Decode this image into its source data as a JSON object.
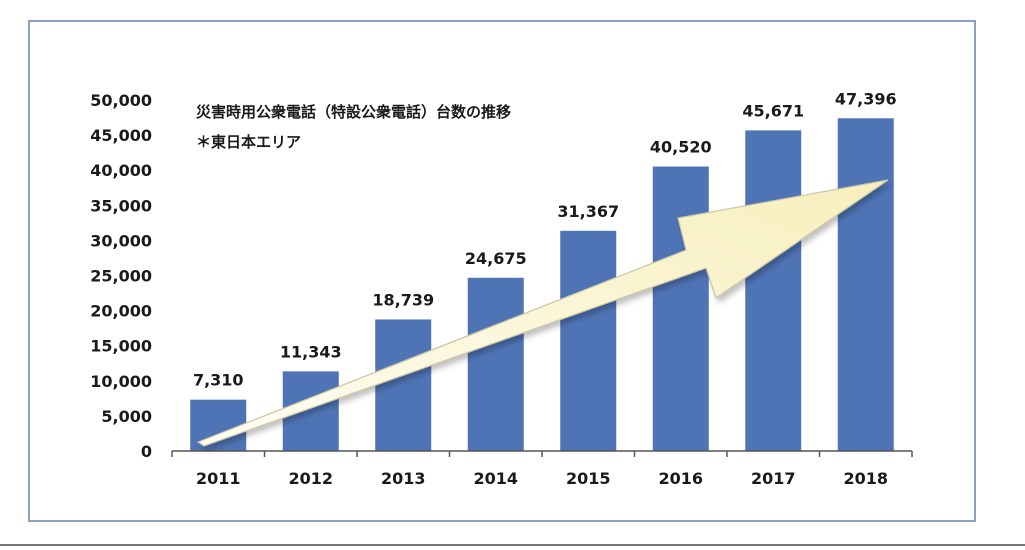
{
  "chart_data": {
    "type": "bar",
    "title": "災害時用公衆電話（特設公衆電話）台数の推移",
    "subtitle": "＊東日本エリア",
    "categories": [
      "2011",
      "2012",
      "2013",
      "2014",
      "2015",
      "2016",
      "2017",
      "2018"
    ],
    "values": [
      7310,
      11343,
      18739,
      24675,
      31367,
      40520,
      45671,
      47396
    ],
    "data_labels": [
      "7,310",
      "11,343",
      "18,739",
      "24,675",
      "31,367",
      "40,520",
      "45,671",
      "47,396"
    ],
    "y_ticks": [
      "0",
      "5,000",
      "10,000",
      "15,000",
      "20,000",
      "25,000",
      "30,000",
      "35,000",
      "40,000",
      "45,000",
      "50,000"
    ],
    "ylim": [
      0,
      50000
    ],
    "y_step": 5000,
    "grid": false,
    "bar_color": "#4f74b6",
    "trend_arrow_color": "#fbf6d2",
    "trend_arrow_outline": "#c9c5a6"
  }
}
